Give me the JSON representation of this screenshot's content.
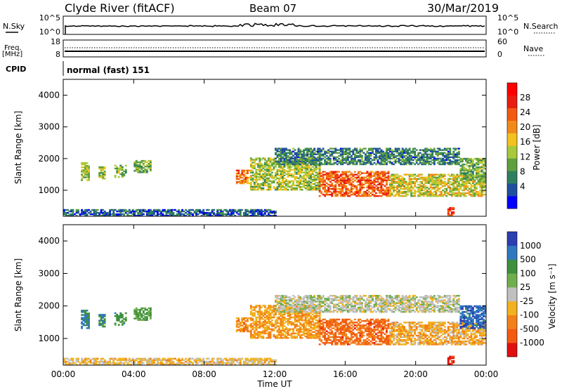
{
  "header": {
    "station": "Clyde River (fitACF)",
    "beam": "Beam 07",
    "date": "30/Mar/2019"
  },
  "strips": {
    "nsky_label": "N.Sky",
    "nsky_ticks": [
      "10^5",
      "10^0"
    ],
    "nsearch_label": "N.Search",
    "nsearch_ticks": [
      "10^5",
      "10^0"
    ],
    "freq_label_1": "Freq.",
    "freq_label_2": "[MHz]",
    "freq_ticks": [
      "18",
      "8"
    ],
    "nave_label": "Nave",
    "nave_ticks": [
      "60",
      "0"
    ],
    "cpid_label": "CPID",
    "cpid_value": "normal (fast) 151"
  },
  "power_panel": {
    "ylabel": "Slant Range [km]",
    "yticks": [
      "4000",
      "3000",
      "2000",
      "1000"
    ],
    "colorbar_label": "Power [dB]",
    "colorbar_ticks": [
      "28",
      "24",
      "20",
      "16",
      "12",
      "8",
      "4"
    ],
    "colors": [
      "#0000ff",
      "#1f4f9f",
      "#2f7f5f",
      "#5f9f3f",
      "#a7c93a",
      "#f2c21f",
      "#f28a1a",
      "#f25a12",
      "#e81e10",
      "#ff0000"
    ]
  },
  "velocity_panel": {
    "ylabel": "Slant Range [km]",
    "yticks": [
      "4000",
      "3000",
      "2000",
      "1000"
    ],
    "colorbar_label": "Velocity [m s⁻¹]",
    "colorbar_ticks": [
      "1000",
      "500",
      "100",
      "25",
      "-25",
      "-100",
      "-500",
      "-1000"
    ],
    "colors": [
      "#2a3fb0",
      "#2f78c0",
      "#3f8f3f",
      "#6fae4f",
      "#c0c0c0",
      "#f2b21f",
      "#f2801a",
      "#f25a12",
      "#e01010"
    ]
  },
  "xaxis": {
    "ticks": [
      "00:00",
      "04:00",
      "08:00",
      "12:00",
      "16:00",
      "20:00",
      "00:00"
    ],
    "label": "Time UT"
  },
  "chart_data": {
    "type": "heatmap",
    "x_range_hours": [
      0,
      24
    ],
    "y_range_km": [
      180,
      4500
    ],
    "power_range_db": [
      0,
      32
    ],
    "velocity_range_ms": [
      -1200,
      1200
    ],
    "grid": false,
    "frequency_mhz": 10,
    "nave": 13,
    "scatter_regions": [
      {
        "t0": 1.0,
        "t1": 1.5,
        "r0": 1300,
        "r1": 1850,
        "power": 14,
        "velocity": 700
      },
      {
        "t0": 2.0,
        "t1": 2.4,
        "r0": 1350,
        "r1": 1750,
        "power": 14,
        "velocity": 600
      },
      {
        "t0": 2.9,
        "t1": 3.6,
        "r0": 1400,
        "r1": 1800,
        "power": 12,
        "velocity": 500
      },
      {
        "t0": 4.0,
        "t1": 4.9,
        "r0": 1550,
        "r1": 1950,
        "power": 12,
        "velocity": 400
      },
      {
        "t0": 9.8,
        "t1": 10.6,
        "r0": 1200,
        "r1": 1650,
        "power": 22,
        "velocity": -500
      },
      {
        "t0": 10.6,
        "t1": 14.5,
        "r0": 1000,
        "r1": 2000,
        "power": 14,
        "velocity": -400
      },
      {
        "t0": 14.5,
        "t1": 18.5,
        "r0": 800,
        "r1": 1600,
        "power": 24,
        "velocity": -700
      },
      {
        "t0": 18.5,
        "t1": 24.0,
        "r0": 800,
        "r1": 1500,
        "power": 16,
        "velocity": -300
      },
      {
        "t0": 12.0,
        "t1": 22.5,
        "r0": 1800,
        "r1": 2300,
        "power": 8,
        "velocity": 20
      },
      {
        "t0": 22.5,
        "t1": 24.0,
        "r0": 1300,
        "r1": 2000,
        "power": 12,
        "velocity": 900
      },
      {
        "t0": 21.8,
        "t1": 22.2,
        "r0": 200,
        "r1": 450,
        "power": 26,
        "velocity": -1000
      },
      {
        "t0": 0.0,
        "t1": 12.0,
        "r0": 180,
        "r1": 380,
        "power": 6,
        "velocity": -200
      }
    ]
  }
}
